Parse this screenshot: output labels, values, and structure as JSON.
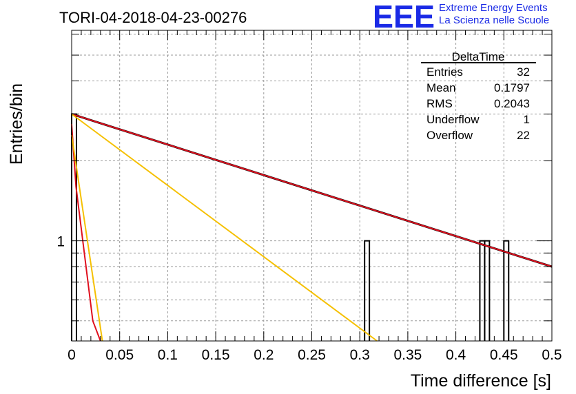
{
  "header": {
    "logo_letters": "EEE",
    "logo_line1": "Extreme Energy Events",
    "logo_line2": "La Scienza nelle Scuole"
  },
  "colors": {
    "histogram": "#000000",
    "fit_black": "#000000",
    "fit_red": "#e0101e",
    "fit_yellow": "#f5c000",
    "logo_blue": "#1a2ae6",
    "grid": "#9a9a9a"
  },
  "chart_data": {
    "type": "histogram",
    "title": "TORI-04-2018-04-23-00276",
    "xlabel": "Time difference [s]",
    "ylabel": "Entries/bin",
    "xlim": [
      0,
      0.5
    ],
    "ylim": [
      0.42,
      6.2
    ],
    "y_scale": "log",
    "grid": true,
    "x_ticks": [
      "0",
      "0.05",
      "0.1",
      "0.15",
      "0.2",
      "0.25",
      "0.3",
      "0.35",
      "0.4",
      "0.45",
      "0.5"
    ],
    "y_tick_labels": [
      "1"
    ],
    "bin_width": 0.005,
    "bins": [
      {
        "x0": 0.0,
        "x1": 0.005,
        "value": 3
      },
      {
        "x0": 0.305,
        "x1": 0.31,
        "value": 1
      },
      {
        "x0": 0.425,
        "x1": 0.43,
        "value": 1
      },
      {
        "x0": 0.43,
        "x1": 0.435,
        "value": 1
      },
      {
        "x0": 0.45,
        "x1": 0.455,
        "value": 1
      }
    ],
    "fit_lines": [
      {
        "color": "black",
        "x": [
          0.0,
          0.5
        ],
        "y": [
          3.0,
          0.8
        ]
      },
      {
        "color": "red",
        "x": [
          0.0,
          0.5
        ],
        "y": [
          3.0,
          0.8
        ]
      },
      {
        "color": "yellow",
        "x": [
          0.0,
          0.318
        ],
        "y": [
          3.0,
          0.42
        ]
      },
      {
        "color": "red",
        "x": [
          0.0,
          0.0045,
          0.022,
          0.03
        ],
        "y": [
          2.75,
          1.6,
          0.5,
          0.42
        ]
      },
      {
        "color": "yellow",
        "x": [
          0.0,
          0.032
        ],
        "y": [
          2.5,
          0.42
        ]
      }
    ],
    "stats_box": {
      "title": "DeltaTime",
      "rows": [
        {
          "label": "Entries",
          "value": "32"
        },
        {
          "label": "Mean",
          "value": "0.1797"
        },
        {
          "label": "RMS",
          "value": "0.2043"
        },
        {
          "label": "Underflow",
          "value": "1"
        },
        {
          "label": "Overflow",
          "value": "22"
        }
      ]
    }
  }
}
